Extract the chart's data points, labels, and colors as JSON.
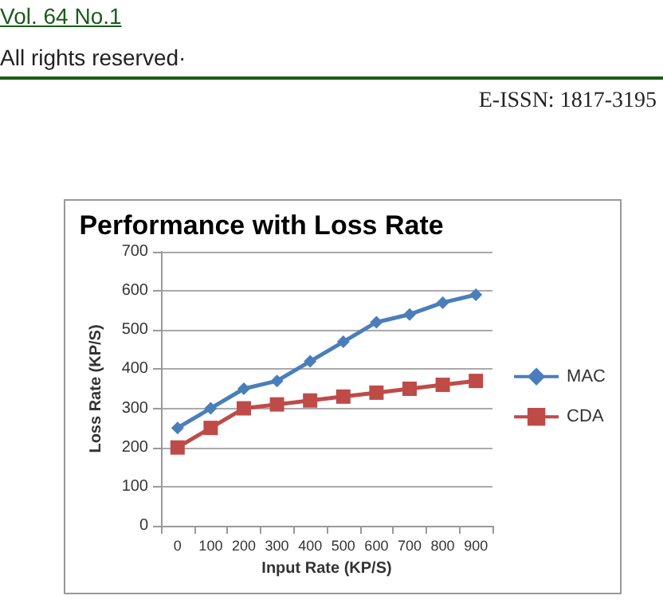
{
  "chart_data": {
    "type": "line",
    "title": "Performance with Loss Rate",
    "xlabel": "Input Rate (KP/S)",
    "ylabel": "Loss Rate (KP/S)",
    "annotations": [
      "Vol. 64 No.1",
      "All rights reserved·",
      "E-ISSN: 1817-3195"
    ],
    "categories": [
      "0",
      "100",
      "200",
      "300",
      "400",
      "500",
      "600",
      "700",
      "800",
      "900"
    ],
    "series": [
      {
        "name": "MAC",
        "color": "#4a7ebb",
        "marker": "diamond",
        "values": [
          250,
          300,
          350,
          370,
          420,
          470,
          520,
          540,
          570,
          590
        ]
      },
      {
        "name": "CDA",
        "color": "#be4b48",
        "marker": "square",
        "values": [
          200,
          250,
          300,
          310,
          320,
          330,
          340,
          350,
          360,
          370
        ]
      }
    ],
    "ylim": [
      0,
      700
    ],
    "yticks": [
      0,
      100,
      200,
      300,
      400,
      500,
      600,
      700
    ],
    "grid": "y",
    "legend": "right"
  }
}
